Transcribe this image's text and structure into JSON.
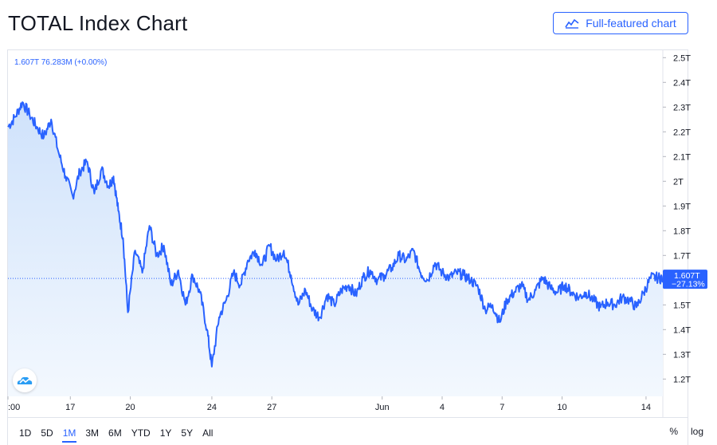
{
  "header": {
    "title": "TOTAL Index Chart",
    "full_chart_label": "Full-featured chart"
  },
  "legend": {
    "text": "1.607T  76.283M  (+0.00%)"
  },
  "price_label": {
    "value": "1.607T",
    "change": "−27.13%"
  },
  "range_buttons": [
    "1D",
    "5D",
    "1M",
    "3M",
    "6M",
    "YTD",
    "1Y",
    "5Y",
    "All"
  ],
  "active_range": "1M",
  "scale_options": [
    "%",
    "log"
  ],
  "colors": {
    "line": "#2962ff",
    "fill_top": "#cfe2fb",
    "fill_bottom": "#f3f8fe",
    "axis_text": "#131722",
    "border": "#e0e3eb"
  },
  "chart_data": {
    "type": "area",
    "y_ticks": [
      "1.2T",
      "1.3T",
      "1.4T",
      "1.5T",
      "1.6T",
      "1.7T",
      "1.8T",
      "1.9T",
      "2T",
      "2.1T",
      "2.2T",
      "2.3T",
      "2.4T",
      "2.5T"
    ],
    "y_tick_values": [
      1.2,
      1.3,
      1.4,
      1.5,
      1.6,
      1.7,
      1.8,
      1.9,
      2.0,
      2.1,
      2.2,
      2.3,
      2.4,
      2.5
    ],
    "ylim": [
      1.13,
      2.53
    ],
    "x_tick_labels": [
      ":00",
      "17",
      "20",
      "24",
      "27",
      "Jun",
      "4",
      "7",
      "10",
      "14"
    ],
    "x_tick_positions": [
      0,
      2.6,
      5.1,
      8.5,
      11.0,
      15.6,
      18.1,
      20.6,
      23.1,
      26.6
    ],
    "xlim": [
      0,
      27.3
    ],
    "last_value": 1.607,
    "series": [
      {
        "x": [
          0,
          0.3,
          0.6,
          0.9,
          1.2,
          1.5,
          1.8,
          2.1,
          2.4,
          2.7,
          3.0,
          3.3,
          3.6,
          3.9,
          4.2,
          4.4,
          4.6,
          4.8,
          5.0,
          5.3,
          5.6,
          5.9,
          6.2,
          6.5,
          6.8,
          7.1,
          7.4,
          7.7,
          8.0,
          8.3,
          8.5,
          8.8,
          9.1,
          9.4,
          9.7,
          10.0,
          10.3,
          10.6,
          10.9,
          11.2,
          11.5,
          11.8,
          12.1,
          12.4,
          12.7,
          13.0,
          13.3,
          13.6,
          13.9,
          14.2,
          14.5,
          14.8,
          15.1,
          15.4,
          15.7,
          16.0,
          16.3,
          16.6,
          16.9,
          17.2,
          17.5,
          17.8,
          18.1,
          18.4,
          18.7,
          19.0,
          19.3,
          19.6,
          19.9,
          20.2,
          20.5,
          20.8,
          21.1,
          21.4,
          21.7,
          22.0,
          22.3,
          22.6,
          22.9,
          23.2,
          23.5,
          23.8,
          24.1,
          24.4,
          24.7,
          25.0,
          25.3,
          25.6,
          25.9,
          26.2,
          26.5,
          26.8,
          27.1,
          27.3
        ],
        "y": [
          2.22,
          2.26,
          2.32,
          2.27,
          2.22,
          2.18,
          2.25,
          2.12,
          2.02,
          1.94,
          2.04,
          2.08,
          1.95,
          2.05,
          1.98,
          2.02,
          1.88,
          1.77,
          1.47,
          1.72,
          1.63,
          1.82,
          1.7,
          1.74,
          1.58,
          1.64,
          1.5,
          1.62,
          1.55,
          1.4,
          1.25,
          1.45,
          1.52,
          1.63,
          1.58,
          1.68,
          1.72,
          1.66,
          1.74,
          1.68,
          1.72,
          1.62,
          1.5,
          1.56,
          1.48,
          1.45,
          1.54,
          1.5,
          1.56,
          1.58,
          1.54,
          1.61,
          1.64,
          1.6,
          1.62,
          1.65,
          1.7,
          1.68,
          1.72,
          1.63,
          1.6,
          1.67,
          1.63,
          1.61,
          1.63,
          1.62,
          1.6,
          1.57,
          1.48,
          1.5,
          1.43,
          1.52,
          1.55,
          1.58,
          1.52,
          1.56,
          1.61,
          1.57,
          1.55,
          1.58,
          1.55,
          1.53,
          1.55,
          1.52,
          1.49,
          1.51,
          1.5,
          1.53,
          1.52,
          1.49,
          1.55,
          1.61,
          1.61,
          1.607
        ]
      }
    ]
  }
}
